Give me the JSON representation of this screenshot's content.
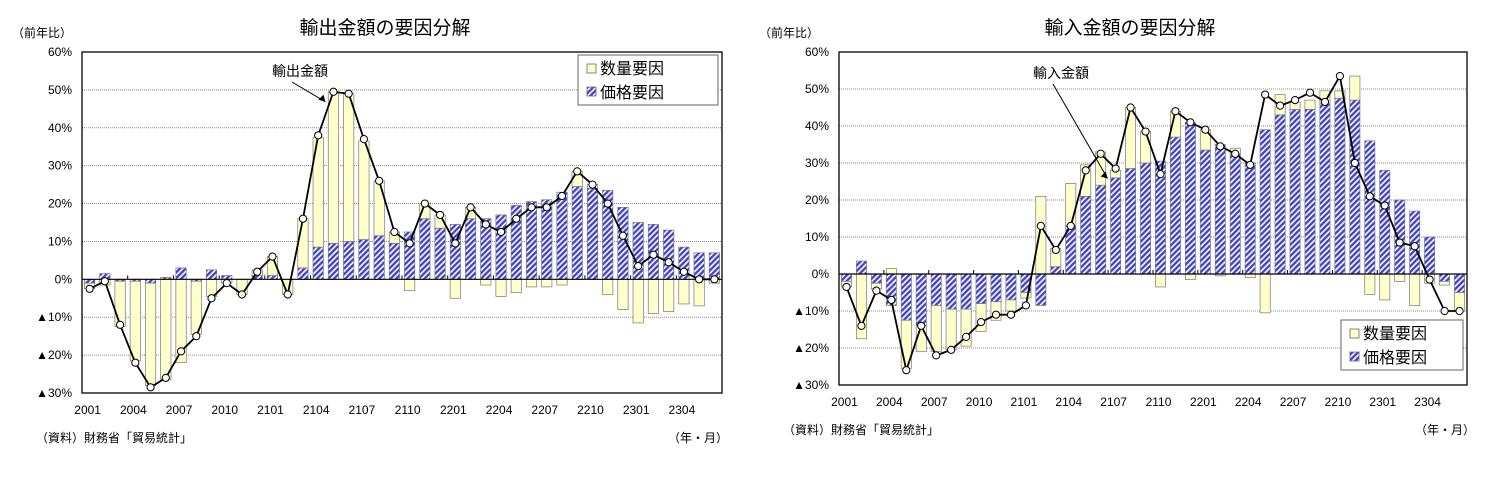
{
  "chart_data": [
    {
      "type": "bar",
      "stacked": true,
      "title": "輸出金額の要因分解",
      "ylabel": "（前年比）",
      "xlabel": "（年・月）",
      "source": "（資料）財務省「貿易統計」",
      "ylim": [
        -30,
        60
      ],
      "yticks": [
        60,
        50,
        40,
        30,
        20,
        10,
        0,
        -10,
        -20,
        -30
      ],
      "ytick_labels": [
        "60%",
        "50%",
        "40%",
        "30%",
        "20%",
        "10%",
        "0%",
        "▲10%",
        "▲20%",
        "▲30%"
      ],
      "xtick_labels": [
        "2001",
        "2004",
        "2007",
        "2010",
        "2101",
        "2104",
        "2107",
        "2110",
        "2201",
        "2204",
        "2207",
        "2210",
        "2301",
        "2304"
      ],
      "annotation": "輸出金額",
      "annotation_index": 16,
      "legend": [
        "数量要因",
        "価格要因"
      ],
      "legend_position": "top-right",
      "grid": true,
      "series": [
        {
          "name": "数量要因",
          "color": "#ffffcc",
          "values": [
            -1.5,
            -1.5,
            -12,
            -21,
            -27,
            -26.5,
            -22,
            -14,
            -4.5,
            -1,
            -4,
            1.5,
            5,
            -4,
            13,
            29,
            40,
            39,
            26,
            14.5,
            3,
            -3,
            4,
            3.5,
            -5,
            3,
            -1.5,
            -4.5,
            -3.5,
            -2,
            -2,
            -1.5,
            4,
            1,
            -4,
            -8,
            -11.5,
            -9,
            -8.5,
            -6.5,
            -7,
            -1
          ]
        },
        {
          "name": "価格要因",
          "color": "#4444cc",
          "values": [
            -1,
            1.5,
            -0.5,
            -0.5,
            -1,
            0.5,
            3,
            -0.5,
            2.5,
            1,
            0,
            1,
            1,
            0,
            3,
            8.5,
            9.5,
            10,
            10.5,
            11.5,
            9.5,
            12.5,
            16,
            13.5,
            14.5,
            16,
            16,
            17,
            19.5,
            20.5,
            21,
            23,
            24.5,
            24,
            23.5,
            19,
            15,
            14.5,
            13,
            8.5,
            7,
            7
          ]
        },
        {
          "name": "輸出金額",
          "type": "line",
          "color": "#000000",
          "values": [
            -2.5,
            -0.5,
            -12,
            -22,
            -28.5,
            -26,
            -19,
            -15,
            -5,
            -1,
            -4,
            2,
            6,
            -4,
            16,
            38,
            49.5,
            49,
            37,
            26,
            12.5,
            9.5,
            20,
            17,
            9.5,
            19,
            14.5,
            12.5,
            16,
            19,
            19,
            22,
            28.5,
            25,
            20,
            11.5,
            3.5,
            6.5,
            4.5,
            2,
            0,
            0
          ]
        }
      ]
    },
    {
      "type": "bar",
      "stacked": true,
      "title": "輸入金額の要因分解",
      "ylabel": "（前年比）",
      "xlabel": "（年・月）",
      "source": "（資料）財務省「貿易統計」",
      "ylim": [
        -30,
        60
      ],
      "yticks": [
        60,
        50,
        40,
        30,
        20,
        10,
        0,
        -10,
        -20,
        -30
      ],
      "ytick_labels": [
        "60%",
        "50%",
        "40%",
        "30%",
        "20%",
        "10%",
        "0%",
        "▲10%",
        "▲20%",
        "▲30%"
      ],
      "xtick_labels": [
        "2001",
        "2004",
        "2007",
        "2010",
        "2101",
        "2104",
        "2107",
        "2110",
        "2201",
        "2204",
        "2207",
        "2210",
        "2301",
        "2304"
      ],
      "annotation": "輸入金額",
      "annotation_index": 18,
      "legend": [
        "数量要因",
        "価格要因"
      ],
      "legend_position": "bottom-right",
      "grid": true,
      "series": [
        {
          "name": "数量要因",
          "color": "#ffffcc",
          "values": [
            -1.5,
            -17.5,
            -1.5,
            1.5,
            -13,
            -7,
            -12.5,
            -11,
            -10,
            -7.5,
            -5,
            -3,
            -1.5,
            21,
            5,
            11.5,
            8.5,
            9,
            2,
            16.5,
            8.5,
            -3.5,
            7,
            -1.5,
            5.5,
            -0.5,
            1.5,
            -1,
            -10.5,
            5.5,
            2,
            2.5,
            3.5,
            2,
            6.5,
            -5.5,
            -7,
            -2,
            -8.5,
            -2.5,
            -1,
            -5
          ]
        },
        {
          "name": "価格要因",
          "color": "#4444cc",
          "values": [
            -2,
            3.5,
            -2.5,
            -8.5,
            -12.5,
            -14,
            -8.5,
            -9.5,
            -9.5,
            -8,
            -7.5,
            -7,
            -5,
            -8.5,
            2,
            13,
            21,
            24,
            26,
            28.5,
            30,
            30.5,
            37,
            41,
            33.5,
            35,
            32.5,
            30,
            39,
            43,
            44.5,
            44.5,
            46,
            47.5,
            47,
            36,
            28,
            20,
            17,
            10,
            -2,
            -5
          ]
        },
        {
          "name": "輸入金額",
          "type": "line",
          "color": "#000000",
          "values": [
            -3.5,
            -14,
            -4.5,
            -7,
            -26,
            -14,
            -22,
            -20.5,
            -17,
            -13,
            -11,
            -11,
            -8.5,
            13,
            6.5,
            13,
            28,
            32.5,
            28.5,
            45,
            38.5,
            27,
            44,
            41,
            39,
            34.5,
            32.5,
            29.5,
            48.5,
            45.5,
            47,
            49,
            46.5,
            53.5,
            30,
            21,
            18.5,
            8.5,
            7.5,
            -1.5,
            -10,
            -10
          ]
        }
      ]
    }
  ]
}
